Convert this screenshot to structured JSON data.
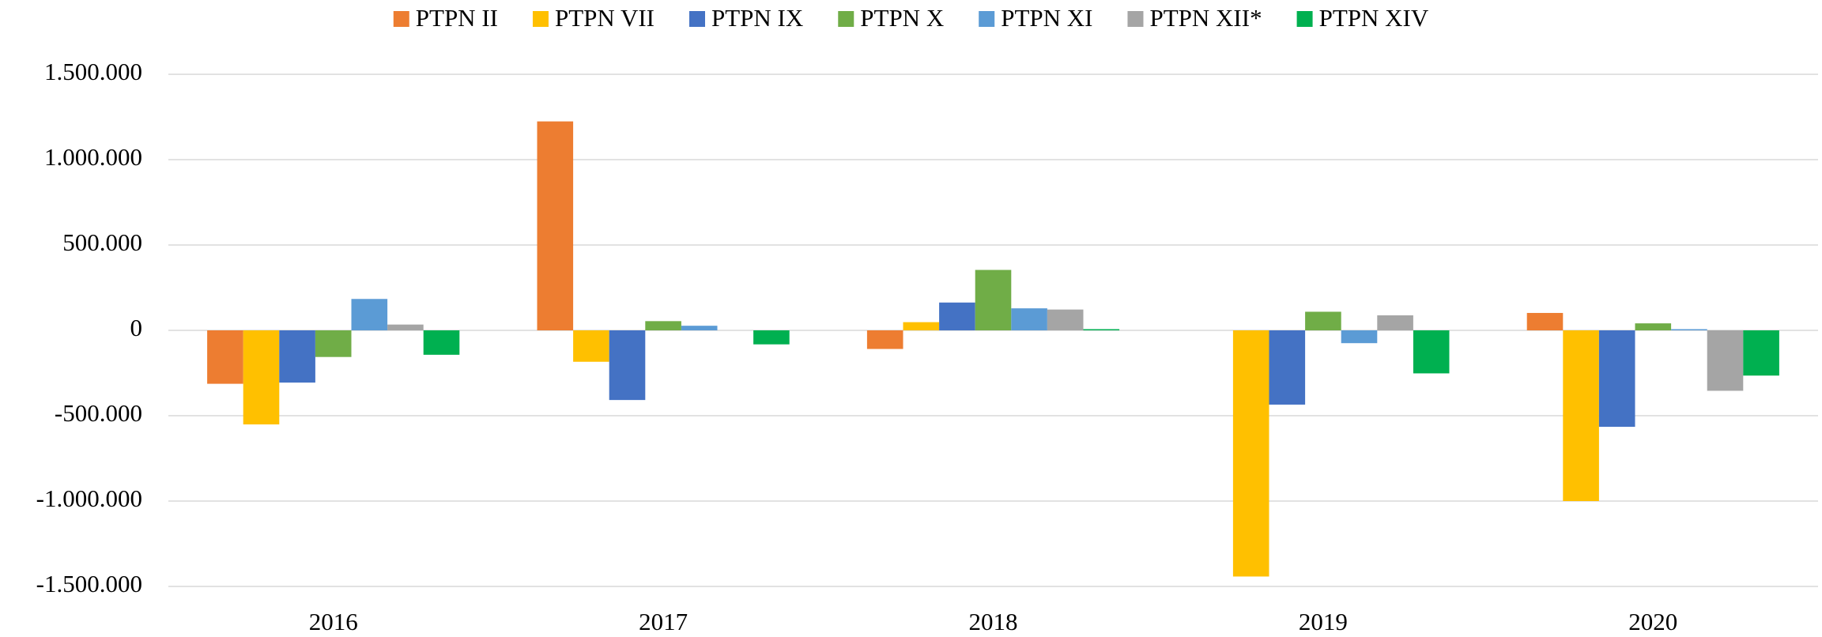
{
  "chart_data": {
    "type": "bar",
    "categories": [
      "2016",
      "2017",
      "2018",
      "2019",
      "2020"
    ],
    "series": [
      {
        "name": "PTPN II",
        "color": "#ed7d31",
        "values": [
          -313000,
          1224000,
          -109000,
          0,
          102000
        ]
      },
      {
        "name": "PTPN VII",
        "color": "#ffc000",
        "values": [
          -551000,
          -184000,
          48000,
          -1442000,
          -1000000
        ]
      },
      {
        "name": "PTPN IX",
        "color": "#4472c4",
        "values": [
          -306000,
          -408000,
          163000,
          -435000,
          -565000
        ]
      },
      {
        "name": "PTPN X",
        "color": "#70ad47",
        "values": [
          -156000,
          54000,
          354000,
          109000,
          41000
        ]
      },
      {
        "name": "PTPN XI",
        "color": "#5b9bd5",
        "values": [
          184000,
          27000,
          129000,
          -75000,
          7000
        ]
      },
      {
        "name": "PTPN XII*",
        "color": "#a5a5a5",
        "values": [
          34000,
          0,
          122000,
          88000,
          -354000
        ]
      },
      {
        "name": "PTPN XIV",
        "color": "#00b050",
        "values": [
          -143000,
          -82000,
          7000,
          -252000,
          -265000
        ]
      }
    ],
    "ylim": [
      -1500000,
      1500000
    ],
    "yticks": [
      {
        "value": -1500000,
        "label": "-1.500.000"
      },
      {
        "value": -1000000,
        "label": "-1.000.000"
      },
      {
        "value": -500000,
        "label": "-500.000"
      },
      0,
      {
        "value": 500000,
        "label": "500.000"
      },
      {
        "value": 1000000,
        "label": "1.000.000"
      },
      {
        "value": 1500000,
        "label": "1.500.000"
      }
    ],
    "grid": true,
    "legend": "top"
  }
}
